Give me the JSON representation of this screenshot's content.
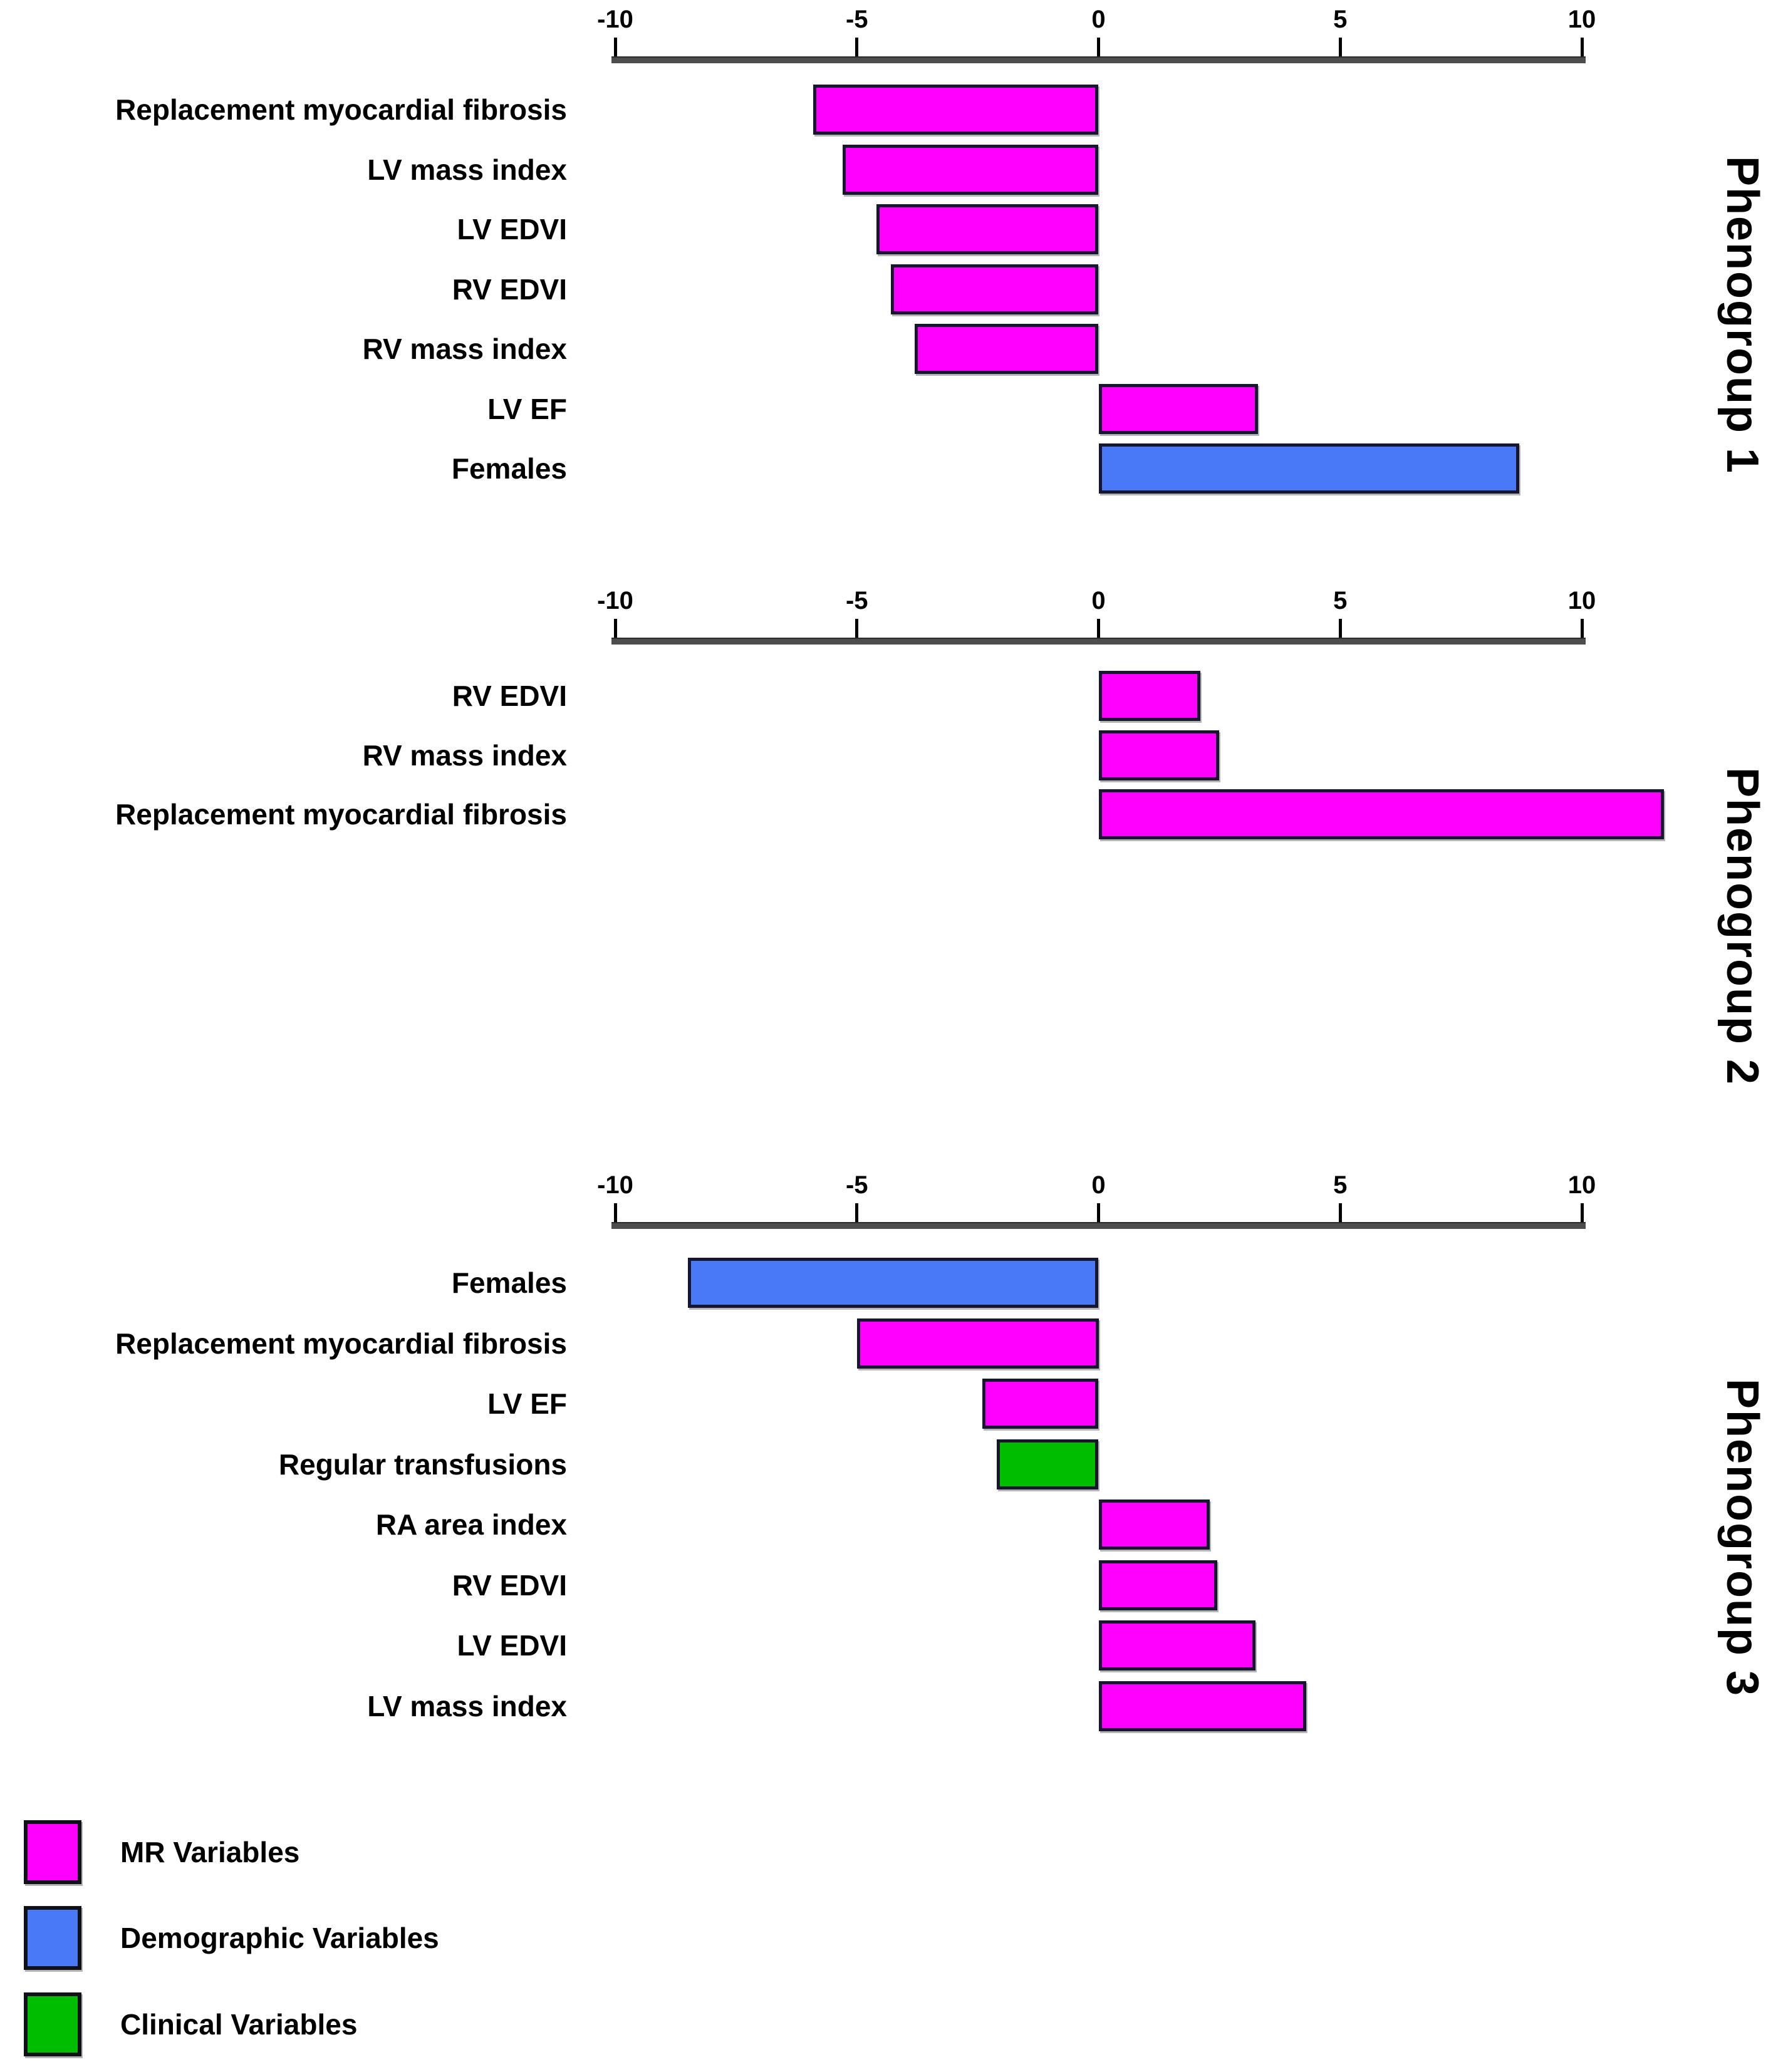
{
  "figure": {
    "background": "#FFFFFF"
  },
  "colors": {
    "mr": "#FF00FF",
    "demographic": "#4A79F7",
    "clinical": "#00BD00",
    "bar_border": "#16162E",
    "axis_line": "#4D4D4D",
    "tick": "#000000",
    "text": "#000000"
  },
  "axis": {
    "min": -10,
    "max": 10,
    "ticks": [
      -10,
      -5,
      0,
      5,
      10
    ],
    "tick_labels": [
      "-10",
      "-5",
      "0",
      "5",
      "10"
    ]
  },
  "chart_data": [
    {
      "type": "bar",
      "orientation": "horizontal",
      "title": "Phenogroup 1",
      "xlim": [
        -10,
        10
      ],
      "grid": false,
      "categories": [
        "Replacement myocardial fibrosis",
        "LV mass index",
        "LV EDVI",
        "RV EDVI",
        "RV mass index",
        "LV EF",
        "Females"
      ],
      "values": [
        -5.9,
        -5.3,
        -4.6,
        -4.3,
        -3.8,
        3.3,
        8.7
      ],
      "series_types": [
        "mr",
        "mr",
        "mr",
        "mr",
        "mr",
        "mr",
        "demographic"
      ]
    },
    {
      "type": "bar",
      "orientation": "horizontal",
      "title": "Phenogroup 2",
      "xlim": [
        -10,
        10
      ],
      "grid": false,
      "categories": [
        "RV EDVI",
        "RV mass index",
        "Replacement myocardial fibrosis"
      ],
      "values": [
        2.1,
        2.5,
        11.7
      ],
      "series_types": [
        "mr",
        "mr",
        "mr"
      ]
    },
    {
      "type": "bar",
      "orientation": "horizontal",
      "title": "Phenogroup 3",
      "xlim": [
        -10,
        10
      ],
      "grid": false,
      "categories": [
        "Females",
        "Replacement myocardial fibrosis",
        "LV EF",
        "Regular transfusions",
        "RA area index",
        "RV EDVI",
        "LV EDVI",
        "LV mass index"
      ],
      "values": [
        -8.5,
        -5.0,
        -2.4,
        -2.1,
        2.3,
        2.45,
        3.25,
        4.3
      ],
      "series_types": [
        "demographic",
        "mr",
        "mr",
        "clinical",
        "mr",
        "mr",
        "mr",
        "mr"
      ]
    }
  ],
  "legend": {
    "items": [
      {
        "label": "MR Variables",
        "color": "mr"
      },
      {
        "label": "Demographic Variables",
        "color": "demographic"
      },
      {
        "label": "Clinical Variables",
        "color": "clinical"
      }
    ]
  }
}
